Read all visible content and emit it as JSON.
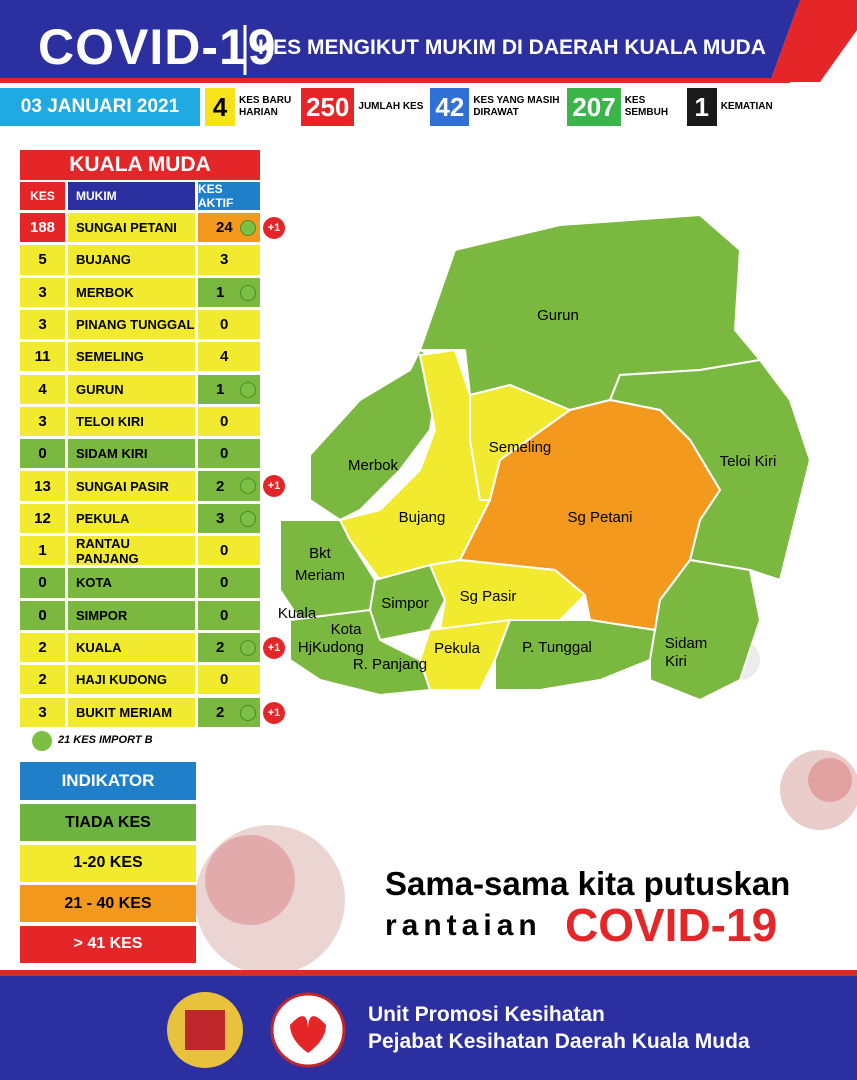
{
  "header": {
    "title": "COVID-19",
    "subtitle": "KES MENGIKUT MUKIM DI DAERAH KUALA MUDA"
  },
  "stats": {
    "date": "03 JANUARI 2021",
    "items": [
      {
        "value": 4,
        "label": "KES BARU HARIAN",
        "color": "#f7e31b",
        "text_color": "#000"
      },
      {
        "value": 250,
        "label": "JUMLAH KES",
        "color": "#e52629",
        "text_color": "#fff"
      },
      {
        "value": 42,
        "label": "KES YANG MASIH DIRAWAT",
        "color": "#2f6fd6",
        "text_color": "#fff"
      },
      {
        "value": 207,
        "label": "KES SEMBUH",
        "color": "#3bb54a",
        "text_color": "#fff"
      },
      {
        "value": 1,
        "label": "KEMATIAN",
        "color": "#1a1a1a",
        "text_color": "#fff"
      }
    ]
  },
  "table": {
    "title": "KUALA MUDA",
    "headers": [
      "KES",
      "MUKIM",
      "KES AKTIF"
    ],
    "rows": [
      {
        "kes": 188,
        "mukim": "SUNGAI PETANI",
        "aktif": 24,
        "import": true,
        "new": "+1"
      },
      {
        "kes": 5,
        "mukim": "BUJANG",
        "aktif": 3,
        "import": false
      },
      {
        "kes": 3,
        "mukim": "MERBOK",
        "aktif": 1,
        "import": true
      },
      {
        "kes": 3,
        "mukim": "PINANG TUNGGAL",
        "aktif": 0,
        "import": false
      },
      {
        "kes": 11,
        "mukim": "SEMELING",
        "aktif": 4,
        "import": false
      },
      {
        "kes": 4,
        "mukim": "GURUN",
        "aktif": 1,
        "import": true
      },
      {
        "kes": 3,
        "mukim": "TELOI KIRI",
        "aktif": 0,
        "import": false
      },
      {
        "kes": 0,
        "mukim": "SIDAM KIRI",
        "aktif": 0,
        "import": false
      },
      {
        "kes": 13,
        "mukim": "SUNGAI PASIR",
        "aktif": 2,
        "import": true,
        "new": "+1"
      },
      {
        "kes": 12,
        "mukim": "PEKULA",
        "aktif": 3,
        "import": true
      },
      {
        "kes": 1,
        "mukim": "RANTAU PANJANG",
        "aktif": 0,
        "import": false
      },
      {
        "kes": 0,
        "mukim": "KOTA",
        "aktif": 0,
        "import": false
      },
      {
        "kes": 0,
        "mukim": "SIMPOR",
        "aktif": 0,
        "import": false
      },
      {
        "kes": 2,
        "mukim": "KUALA",
        "aktif": 2,
        "import": true,
        "new": "+1"
      },
      {
        "kes": 2,
        "mukim": "HAJI KUDONG",
        "aktif": 0,
        "import": false
      },
      {
        "kes": 3,
        "mukim": "BUKIT MERIAM",
        "aktif": 2,
        "import": true,
        "new": "+1"
      }
    ],
    "import_note": "21 KES IMPORT B"
  },
  "indicator": {
    "title": "INDIKATOR",
    "levels": [
      {
        "label": "TIADA KES",
        "color": "#6db33f"
      },
      {
        "label": "1-20 KES",
        "color": "#f2ea2e"
      },
      {
        "label": "21 - 40 KES",
        "color": "#f39a1e"
      },
      {
        "label": "> 41 KES",
        "color": "#e52629"
      }
    ]
  },
  "map": {
    "labels": [
      "Gurun",
      "Semeling",
      "Merbok",
      "Teloi Kiri",
      "Bujang",
      "Sg Petani",
      "Bkt",
      "Meriam",
      "Simpor",
      "Sg Pasir",
      "Kuala",
      "Kota",
      "Hj",
      "Kudong",
      "R. Panjang",
      "Pekula",
      "P. Tunggal",
      "Sidam",
      "Kiri"
    ]
  },
  "slogan": {
    "line1": "Sama-sama kita putuskan",
    "line2": "rantaian",
    "highlight": "COVID-19"
  },
  "footer": {
    "line1": "Unit Promosi Kesihatan",
    "line2": "Pejabat Kesihatan Daerah Kuala Muda"
  }
}
